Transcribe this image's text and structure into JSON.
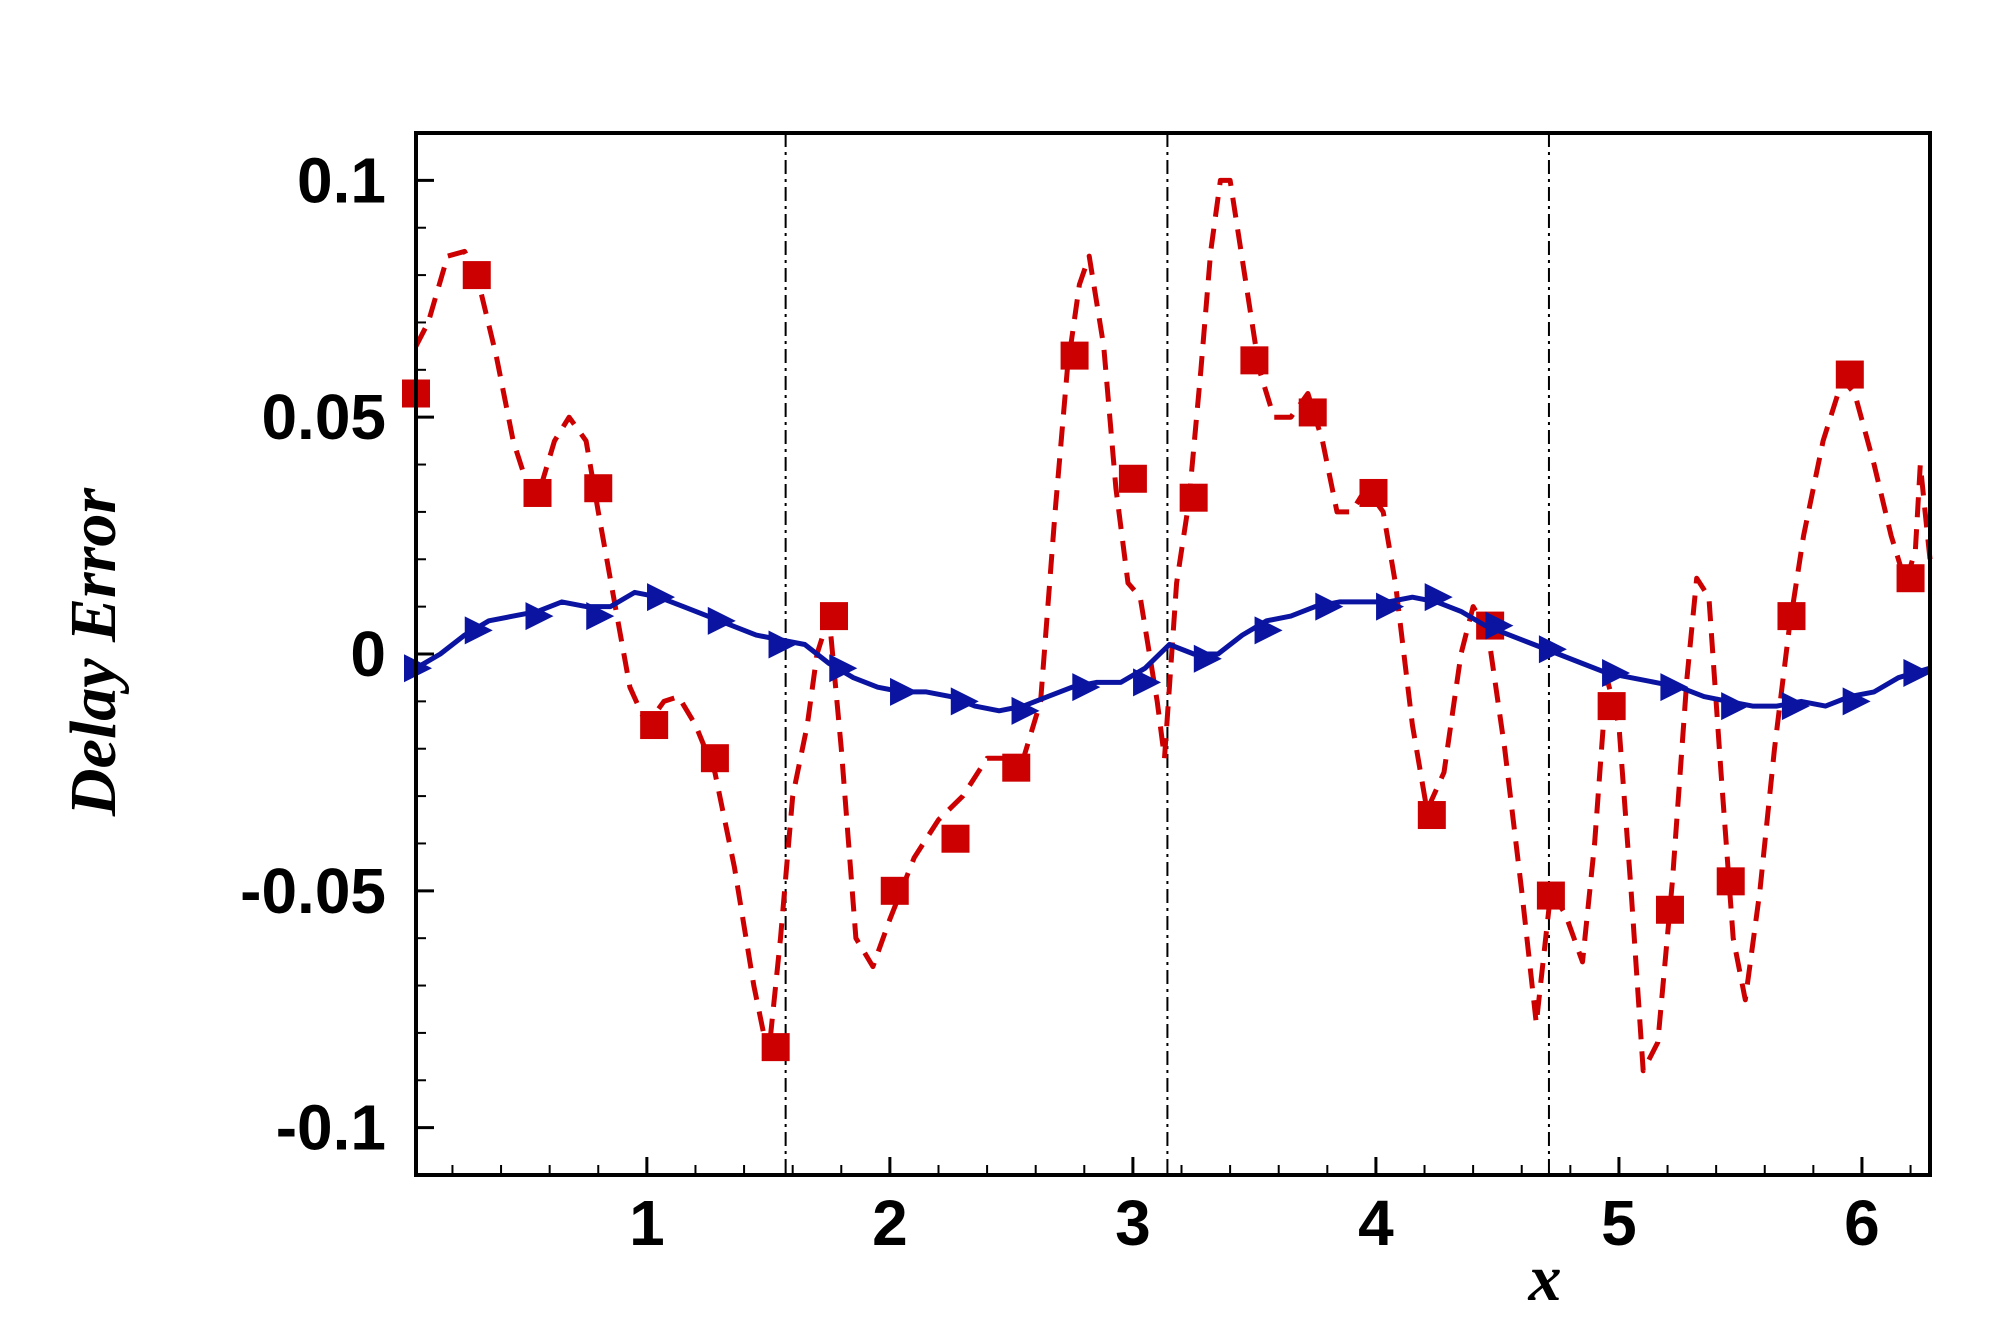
{
  "chart_data": {
    "type": "line",
    "xlabel": "x",
    "ylabel": "Delay Error",
    "xlim": [
      0.05,
      6.28
    ],
    "ylim": [
      -0.11,
      0.11
    ],
    "x_ticks": [
      1,
      2,
      3,
      4,
      5,
      6
    ],
    "x_tick_labels": [
      "1",
      "2",
      "3",
      "4",
      "5",
      "6"
    ],
    "y_ticks": [
      0.1,
      0.05,
      0,
      -0.05,
      -0.1
    ],
    "y_tick_labels": [
      "0.1",
      "0.05",
      "0",
      "-0.05",
      "-0.1"
    ],
    "x_minor_step": 0.2,
    "y_minor_step": 0.01,
    "reference_lines_x": [
      1.571,
      3.142,
      4.712
    ],
    "grid": false,
    "legend": "none",
    "series": [
      {
        "color": "#cc0000",
        "line_style": "dashed",
        "marker": "square",
        "curve": [
          [
            0.05,
            0.065
          ],
          [
            0.1,
            0.07
          ],
          [
            0.18,
            0.084
          ],
          [
            0.25,
            0.085
          ],
          [
            0.3,
            0.08
          ],
          [
            0.38,
            0.063
          ],
          [
            0.45,
            0.045
          ],
          [
            0.5,
            0.037
          ],
          [
            0.55,
            0.033
          ],
          [
            0.62,
            0.045
          ],
          [
            0.68,
            0.05
          ],
          [
            0.75,
            0.045
          ],
          [
            0.8,
            0.03
          ],
          [
            0.87,
            0.01
          ],
          [
            0.93,
            -0.007
          ],
          [
            1.0,
            -0.015
          ],
          [
            1.07,
            -0.01
          ],
          [
            1.13,
            -0.009
          ],
          [
            1.2,
            -0.015
          ],
          [
            1.28,
            -0.025
          ],
          [
            1.36,
            -0.045
          ],
          [
            1.44,
            -0.07
          ],
          [
            1.5,
            -0.085
          ],
          [
            1.55,
            -0.06
          ],
          [
            1.6,
            -0.03
          ],
          [
            1.66,
            -0.015
          ],
          [
            1.7,
            0.0
          ],
          [
            1.75,
            0.008
          ],
          [
            1.8,
            -0.02
          ],
          [
            1.86,
            -0.06
          ],
          [
            1.93,
            -0.066
          ],
          [
            2.0,
            -0.056
          ],
          [
            2.1,
            -0.043
          ],
          [
            2.2,
            -0.035
          ],
          [
            2.3,
            -0.03
          ],
          [
            2.4,
            -0.022
          ],
          [
            2.5,
            -0.022
          ],
          [
            2.55,
            -0.022
          ],
          [
            2.62,
            -0.01
          ],
          [
            2.68,
            0.03
          ],
          [
            2.73,
            0.06
          ],
          [
            2.78,
            0.078
          ],
          [
            2.82,
            0.084
          ],
          [
            2.88,
            0.065
          ],
          [
            2.93,
            0.035
          ],
          [
            2.98,
            0.015
          ],
          [
            3.03,
            0.012
          ],
          [
            3.1,
            -0.01
          ],
          [
            3.13,
            -0.022
          ],
          [
            3.18,
            0.015
          ],
          [
            3.23,
            0.032
          ],
          [
            3.28,
            0.06
          ],
          [
            3.32,
            0.085
          ],
          [
            3.36,
            0.1
          ],
          [
            3.4,
            0.1
          ],
          [
            3.46,
            0.08
          ],
          [
            3.52,
            0.06
          ],
          [
            3.58,
            0.05
          ],
          [
            3.65,
            0.05
          ],
          [
            3.72,
            0.055
          ],
          [
            3.78,
            0.045
          ],
          [
            3.84,
            0.03
          ],
          [
            3.9,
            0.03
          ],
          [
            3.96,
            0.035
          ],
          [
            4.03,
            0.03
          ],
          [
            4.08,
            0.015
          ],
          [
            4.15,
            -0.015
          ],
          [
            4.21,
            -0.033
          ],
          [
            4.28,
            -0.025
          ],
          [
            4.35,
            0.0
          ],
          [
            4.4,
            0.01
          ],
          [
            4.46,
            0.005
          ],
          [
            4.53,
            -0.02
          ],
          [
            4.6,
            -0.05
          ],
          [
            4.66,
            -0.078
          ],
          [
            4.72,
            -0.05
          ],
          [
            4.78,
            -0.055
          ],
          [
            4.85,
            -0.065
          ],
          [
            4.9,
            -0.04
          ],
          [
            4.95,
            -0.005
          ],
          [
            5.0,
            -0.015
          ],
          [
            5.05,
            -0.05
          ],
          [
            5.1,
            -0.088
          ],
          [
            5.16,
            -0.082
          ],
          [
            5.22,
            -0.048
          ],
          [
            5.28,
            -0.005
          ],
          [
            5.32,
            0.016
          ],
          [
            5.37,
            0.012
          ],
          [
            5.42,
            -0.025
          ],
          [
            5.47,
            -0.06
          ],
          [
            5.52,
            -0.073
          ],
          [
            5.58,
            -0.05
          ],
          [
            5.64,
            -0.02
          ],
          [
            5.7,
            0.005
          ],
          [
            5.76,
            0.025
          ],
          [
            5.84,
            0.045
          ],
          [
            5.92,
            0.058
          ],
          [
            5.97,
            0.055
          ],
          [
            6.05,
            0.04
          ],
          [
            6.12,
            0.025
          ],
          [
            6.18,
            0.015
          ],
          [
            6.22,
            0.022
          ],
          [
            6.24,
            0.04
          ],
          [
            6.26,
            0.03
          ],
          [
            6.28,
            0.02
          ]
        ],
        "markers": [
          [
            0.05,
            0.055
          ],
          [
            0.3,
            0.08
          ],
          [
            0.55,
            0.034
          ],
          [
            0.8,
            0.035
          ],
          [
            1.03,
            -0.015
          ],
          [
            1.28,
            -0.022
          ],
          [
            1.53,
            -0.083
          ],
          [
            1.77,
            0.008
          ],
          [
            2.02,
            -0.05
          ],
          [
            2.27,
            -0.039
          ],
          [
            2.52,
            -0.024
          ],
          [
            2.76,
            0.063
          ],
          [
            3.0,
            0.037
          ],
          [
            3.25,
            0.033
          ],
          [
            3.5,
            0.062
          ],
          [
            3.74,
            0.051
          ],
          [
            3.99,
            0.034
          ],
          [
            4.23,
            -0.034
          ],
          [
            4.47,
            0.006
          ],
          [
            4.72,
            -0.051
          ],
          [
            4.97,
            -0.011
          ],
          [
            5.21,
            -0.054
          ],
          [
            5.46,
            -0.048
          ],
          [
            5.71,
            0.008
          ],
          [
            5.95,
            0.059
          ],
          [
            6.2,
            0.016
          ]
        ]
      },
      {
        "color": "#0a14a0",
        "line_style": "solid",
        "marker": "triangle-right",
        "curve": [
          [
            0.05,
            -0.003
          ],
          [
            0.15,
            0.0
          ],
          [
            0.25,
            0.004
          ],
          [
            0.35,
            0.007
          ],
          [
            0.45,
            0.008
          ],
          [
            0.55,
            0.009
          ],
          [
            0.65,
            0.011
          ],
          [
            0.75,
            0.01
          ],
          [
            0.85,
            0.01
          ],
          [
            0.95,
            0.013
          ],
          [
            1.05,
            0.012
          ],
          [
            1.15,
            0.01
          ],
          [
            1.25,
            0.008
          ],
          [
            1.35,
            0.006
          ],
          [
            1.45,
            0.004
          ],
          [
            1.55,
            0.003
          ],
          [
            1.65,
            0.002
          ],
          [
            1.75,
            -0.002
          ],
          [
            1.85,
            -0.005
          ],
          [
            1.95,
            -0.007
          ],
          [
            2.05,
            -0.008
          ],
          [
            2.15,
            -0.008
          ],
          [
            2.25,
            -0.009
          ],
          [
            2.35,
            -0.011
          ],
          [
            2.45,
            -0.012
          ],
          [
            2.55,
            -0.011
          ],
          [
            2.65,
            -0.009
          ],
          [
            2.75,
            -0.007
          ],
          [
            2.85,
            -0.006
          ],
          [
            2.95,
            -0.006
          ],
          [
            3.05,
            -0.003
          ],
          [
            3.15,
            0.002
          ],
          [
            3.25,
            0.0
          ],
          [
            3.35,
            0.0
          ],
          [
            3.45,
            0.004
          ],
          [
            3.55,
            0.007
          ],
          [
            3.65,
            0.008
          ],
          [
            3.75,
            0.01
          ],
          [
            3.85,
            0.011
          ],
          [
            3.95,
            0.011
          ],
          [
            4.05,
            0.011
          ],
          [
            4.15,
            0.012
          ],
          [
            4.25,
            0.011
          ],
          [
            4.35,
            0.009
          ],
          [
            4.45,
            0.006
          ],
          [
            4.55,
            0.004
          ],
          [
            4.65,
            0.002
          ],
          [
            4.75,
            0.0
          ],
          [
            4.85,
            -0.002
          ],
          [
            4.95,
            -0.004
          ],
          [
            5.05,
            -0.005
          ],
          [
            5.15,
            -0.006
          ],
          [
            5.25,
            -0.007
          ],
          [
            5.35,
            -0.009
          ],
          [
            5.45,
            -0.01
          ],
          [
            5.55,
            -0.011
          ],
          [
            5.65,
            -0.011
          ],
          [
            5.75,
            -0.01
          ],
          [
            5.85,
            -0.011
          ],
          [
            5.95,
            -0.009
          ],
          [
            6.05,
            -0.008
          ],
          [
            6.15,
            -0.005
          ],
          [
            6.28,
            -0.003
          ]
        ],
        "markers": [
          [
            0.05,
            -0.003
          ],
          [
            0.3,
            0.005
          ],
          [
            0.55,
            0.008
          ],
          [
            0.8,
            0.008
          ],
          [
            1.05,
            0.012
          ],
          [
            1.3,
            0.007
          ],
          [
            1.55,
            0.002
          ],
          [
            1.8,
            -0.003
          ],
          [
            2.05,
            -0.008
          ],
          [
            2.3,
            -0.01
          ],
          [
            2.55,
            -0.012
          ],
          [
            2.8,
            -0.007
          ],
          [
            3.05,
            -0.006
          ],
          [
            3.3,
            -0.001
          ],
          [
            3.55,
            0.005
          ],
          [
            3.8,
            0.01
          ],
          [
            4.05,
            0.01
          ],
          [
            4.25,
            0.012
          ],
          [
            4.5,
            0.006
          ],
          [
            4.72,
            0.001
          ],
          [
            4.98,
            -0.004
          ],
          [
            5.22,
            -0.007
          ],
          [
            5.47,
            -0.011
          ],
          [
            5.72,
            -0.011
          ],
          [
            5.97,
            -0.01
          ],
          [
            6.22,
            -0.004
          ]
        ]
      }
    ]
  }
}
